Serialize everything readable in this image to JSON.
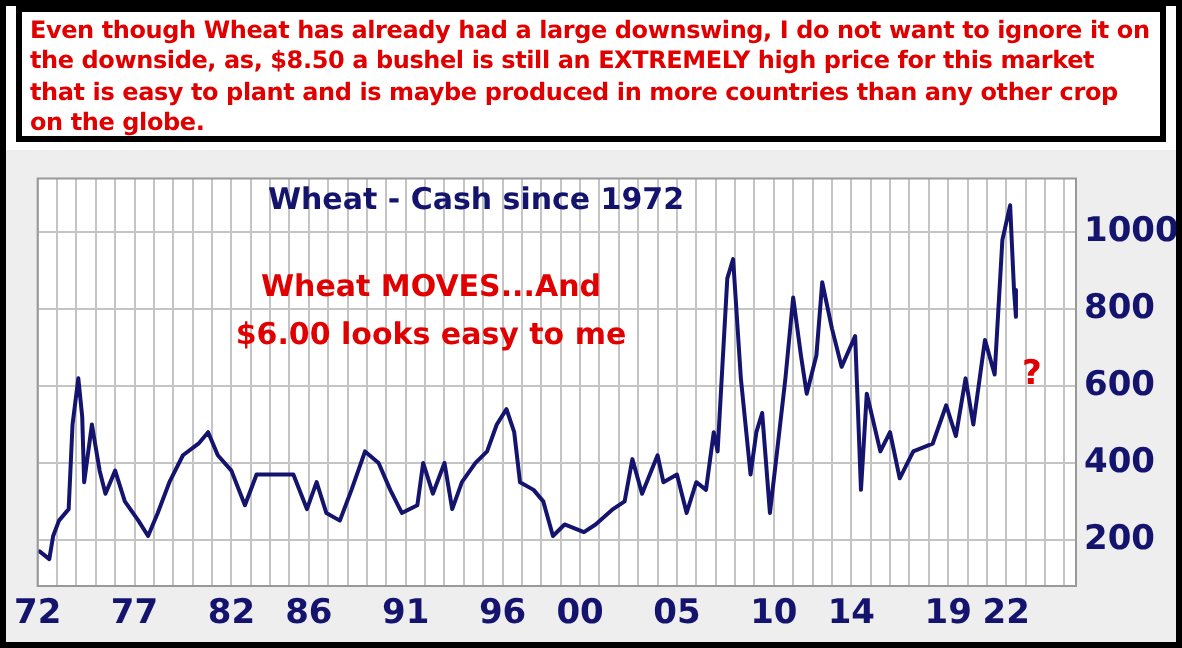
{
  "chart_data": {
    "type": "line",
    "title": "Wheat - Cash since 1972",
    "annotations": [
      "Even though Wheat has already had a large downswing, I do not want to ignore it on the downside, as, $8.50 a bushel is still an EXTREMELY high price for this market that is easy to plant and is maybe produced in more countries than any other crop on the globe.",
      "Wheat MOVES...And $6.00 looks easy to me",
      "?"
    ],
    "series": [
      {
        "color": "#14146e",
        "x": [
          1972.1,
          1972.6,
          1972.8,
          1973.1,
          1973.6,
          1973.8,
          1974.1,
          1974.3,
          1974.4,
          1974.8,
          1975.2,
          1975.5,
          1976.0,
          1976.5,
          1977.2,
          1977.7,
          1978.2,
          1978.8,
          1979.5,
          1980.3,
          1980.8,
          1981.3,
          1982.0,
          1982.7,
          1983.3,
          1984.2,
          1985.2,
          1985.9,
          1986.4,
          1986.9,
          1987.6,
          1988.2,
          1988.9,
          1989.6,
          1990.2,
          1990.8,
          1991.6,
          1991.9,
          1992.4,
          1993.0,
          1993.4,
          1993.9,
          1994.6,
          1995.2,
          1995.7,
          1996.2,
          1996.6,
          1996.9,
          1997.6,
          1998.1,
          1998.6,
          1999.2,
          2000.2,
          2000.8,
          2001.7,
          2002.3,
          2002.7,
          2003.2,
          2004.0,
          2004.3,
          2005.0,
          2005.5,
          2006.0,
          2006.5,
          2006.9,
          2007.1,
          2007.6,
          2007.9,
          2008.3,
          2008.8,
          2009.1,
          2009.4,
          2009.8,
          2010.1,
          2010.6,
          2011.0,
          2011.4,
          2011.7,
          2012.2,
          2012.5,
          2013.0,
          2013.5,
          2014.2,
          2014.5,
          2014.8,
          2015.5,
          2016.0,
          2016.5,
          2017.2,
          2018.2,
          2018.9,
          2019.4,
          2019.9,
          2020.3,
          2020.9,
          2021.4,
          2021.8,
          2022.2,
          2022.4,
          2022.5
        ],
        "values": [
          170,
          150,
          210,
          250,
          280,
          500,
          620,
          520,
          350,
          500,
          380,
          320,
          380,
          300,
          250,
          210,
          270,
          350,
          420,
          450,
          480,
          420,
          380,
          290,
          370,
          370,
          370,
          280,
          350,
          270,
          250,
          330,
          430,
          400,
          330,
          270,
          290,
          400,
          320,
          400,
          280,
          350,
          400,
          430,
          500,
          540,
          480,
          350,
          330,
          300,
          210,
          240,
          220,
          240,
          280,
          300,
          410,
          320,
          420,
          350,
          370,
          270,
          350,
          330,
          480,
          430,
          880,
          930,
          620,
          370,
          480,
          530,
          270,
          400,
          620,
          830,
          680,
          580,
          680,
          870,
          750,
          650,
          730,
          330,
          580,
          430,
          480,
          360,
          430,
          450,
          550,
          470,
          620,
          500,
          720,
          630,
          980,
          1070,
          850,
          780
        ]
      }
    ],
    "xlim": [
      1972,
      2025.6
    ],
    "xticks": [
      {
        "value": 1972,
        "label": "72"
      },
      {
        "value": 1973,
        "label": null
      },
      {
        "value": 1974,
        "label": null
      },
      {
        "value": 1975,
        "label": null
      },
      {
        "value": 1976,
        "label": null
      },
      {
        "value": 1977,
        "label": "77"
      },
      {
        "value": 1978,
        "label": null
      },
      {
        "value": 1979,
        "label": null
      },
      {
        "value": 1980,
        "label": null
      },
      {
        "value": 1981,
        "label": null
      },
      {
        "value": 1982,
        "label": "82"
      },
      {
        "value": 1983,
        "label": null
      },
      {
        "value": 1984,
        "label": null
      },
      {
        "value": 1985,
        "label": null
      },
      {
        "value": 1986,
        "label": "86"
      },
      {
        "value": 1987,
        "label": null
      },
      {
        "value": 1988,
        "label": null
      },
      {
        "value": 1989,
        "label": null
      },
      {
        "value": 1990,
        "label": null
      },
      {
        "value": 1991,
        "label": "91"
      },
      {
        "value": 1992,
        "label": null
      },
      {
        "value": 1993,
        "label": null
      },
      {
        "value": 1994,
        "label": null
      },
      {
        "value": 1995,
        "label": null
      },
      {
        "value": 1996,
        "label": "96"
      },
      {
        "value": 1997,
        "label": null
      },
      {
        "value": 1998,
        "label": null
      },
      {
        "value": 1999,
        "label": null
      },
      {
        "value": 2000,
        "label": "00"
      },
      {
        "value": 2001,
        "label": null
      },
      {
        "value": 2002,
        "label": null
      },
      {
        "value": 2003,
        "label": null
      },
      {
        "value": 2004,
        "label": null
      },
      {
        "value": 2005,
        "label": "05"
      },
      {
        "value": 2006,
        "label": null
      },
      {
        "value": 2007,
        "label": null
      },
      {
        "value": 2008,
        "label": null
      },
      {
        "value": 2009,
        "label": null
      },
      {
        "value": 2010,
        "label": "10"
      },
      {
        "value": 2011,
        "label": null
      },
      {
        "value": 2012,
        "label": null
      },
      {
        "value": 2013,
        "label": null
      },
      {
        "value": 2014,
        "label": "14"
      },
      {
        "value": 2015,
        "label": null
      },
      {
        "value": 2016,
        "label": null
      },
      {
        "value": 2017,
        "label": null
      },
      {
        "value": 2018,
        "label": null
      },
      {
        "value": 2019,
        "label": "19"
      },
      {
        "value": 2020,
        "label": null
      },
      {
        "value": 2021,
        "label": null
      },
      {
        "value": 2022,
        "label": "22"
      },
      {
        "value": 2023,
        "label": null
      },
      {
        "value": 2024,
        "label": null
      },
      {
        "value": 2025,
        "label": null
      }
    ],
    "ylim": [
      80,
      1140
    ],
    "yticks": [
      200,
      400,
      600,
      800,
      1000
    ],
    "grid": true,
    "legend": false,
    "marker": "none",
    "line_style": "solid"
  }
}
